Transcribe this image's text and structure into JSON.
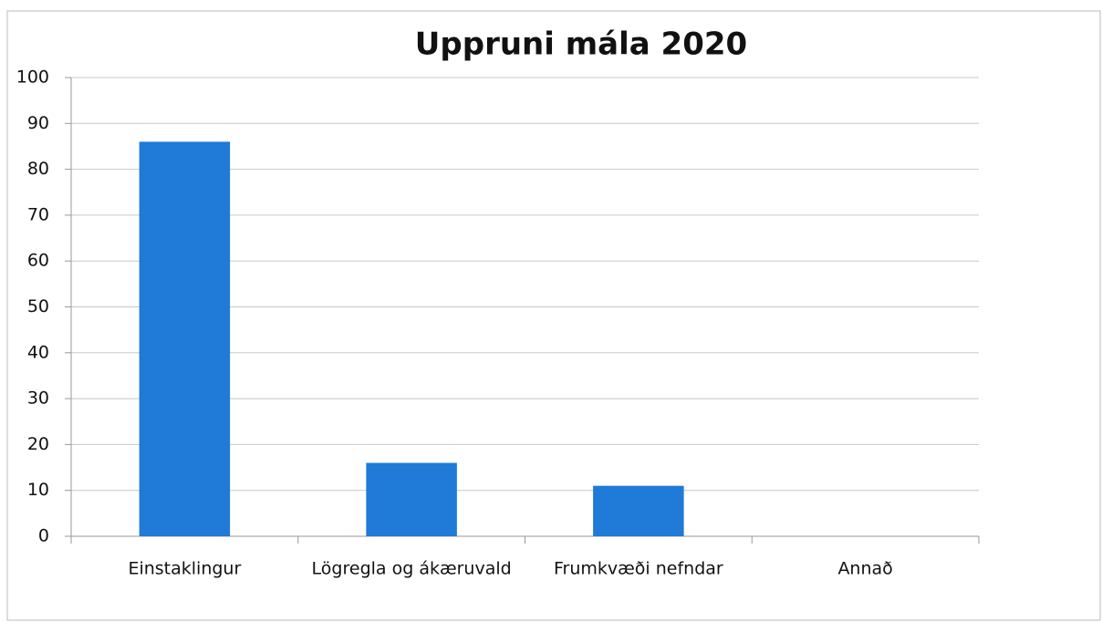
{
  "chart_data": {
    "type": "bar",
    "title": "Uppruni mála 2020",
    "categories": [
      "Einstaklingur",
      "Lögregla og ákæruvald",
      "Frumkvæði nefndar",
      "Annað"
    ],
    "values": [
      86,
      16,
      11,
      0
    ],
    "color": "#1f7ad8",
    "ylim": [
      0,
      100
    ],
    "yticks": [
      0,
      10,
      20,
      30,
      40,
      50,
      60,
      70,
      80,
      90,
      100
    ],
    "grid": true
  }
}
